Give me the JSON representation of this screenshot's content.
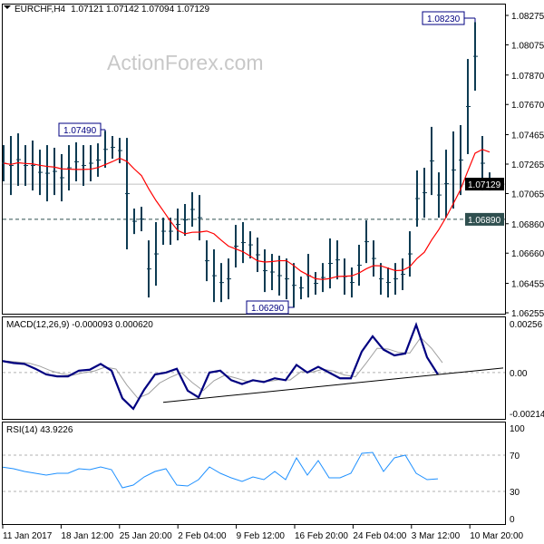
{
  "header": {
    "symbol": "EURCHF,H4",
    "ohlc": "1.07121 1.07142 1.07094 1.07129",
    "menu_icon": "triangle-down-icon"
  },
  "watermark": "ActionForex.com",
  "colors": {
    "bars": "#0d3b52",
    "ma": "#ff0000",
    "macd": "#000080",
    "signal": "#a0a0a0",
    "rsi": "#1e90ff",
    "current_price_bg": "#000000",
    "level_bg": "#2f4f4f"
  },
  "chart_data": [
    {
      "type": "bar",
      "title": "EURCHF,H4",
      "price_axis_ticks": [
        "1.08275",
        "1.08075",
        "1.07870",
        "1.07670",
        "1.07465",
        "1.07265",
        "1.07065",
        "1.06860",
        "1.06660",
        "1.06455",
        "1.06255"
      ],
      "ylim": [
        1.06255,
        1.08275
      ],
      "current_price": "1.07129",
      "level_line": "1.06890",
      "annotations": {
        "high_1": "1.07490",
        "low": "1.06290",
        "high_2": "1.08230"
      },
      "bars_high_low": [
        [
          1.07394,
          1.07148
        ],
        [
          1.07456,
          1.07055
        ],
        [
          1.07474,
          1.07117
        ],
        [
          1.07394,
          1.07117
        ],
        [
          1.07425,
          1.07086
        ],
        [
          1.07363,
          1.07055
        ],
        [
          1.07394,
          1.07012
        ],
        [
          1.07376,
          1.07055
        ],
        [
          1.07333,
          1.07012
        ],
        [
          1.07394,
          1.07086
        ],
        [
          1.07413,
          1.07148
        ],
        [
          1.07394,
          1.07117
        ],
        [
          1.07394,
          1.07148
        ],
        [
          1.07406,
          1.07179
        ],
        [
          1.0749,
          1.0724
        ],
        [
          1.07456,
          1.07302
        ],
        [
          1.07443,
          1.07271
        ],
        [
          1.07443,
          1.06686
        ],
        [
          1.06963,
          1.0679
        ],
        [
          1.06975,
          1.06809
        ],
        [
          1.06747,
          1.06359
        ],
        [
          1.06871,
          1.06439
        ],
        [
          1.06901,
          1.06717
        ],
        [
          1.06901,
          1.06717
        ],
        [
          1.06963,
          1.06747
        ],
        [
          1.06994,
          1.06778
        ],
        [
          1.07074,
          1.0684
        ],
        [
          1.07055,
          1.06747
        ],
        [
          1.06747,
          1.0647
        ],
        [
          1.06686,
          1.06328
        ],
        [
          1.06593,
          1.06328
        ],
        [
          1.06624,
          1.06347
        ],
        [
          1.06852,
          1.06563
        ],
        [
          1.06871,
          1.06593
        ],
        [
          1.06809,
          1.06624
        ],
        [
          1.06766,
          1.06532
        ],
        [
          1.06686,
          1.06396
        ],
        [
          1.06655,
          1.06409
        ],
        [
          1.06643,
          1.06372
        ],
        [
          1.06624,
          1.06347
        ],
        [
          1.06593,
          1.0629
        ],
        [
          1.06501,
          1.06347
        ],
        [
          1.06655,
          1.06359
        ],
        [
          1.06532,
          1.06378
        ],
        [
          1.06593,
          1.06396
        ],
        [
          1.0676,
          1.06421
        ],
        [
          1.06747,
          1.06482
        ],
        [
          1.06624,
          1.06378
        ],
        [
          1.06563,
          1.06359
        ],
        [
          1.06717,
          1.06439
        ],
        [
          1.06883,
          1.06593
        ],
        [
          1.06747,
          1.06501
        ],
        [
          1.06593,
          1.06378
        ],
        [
          1.06563,
          1.06359
        ],
        [
          1.06593,
          1.06378
        ],
        [
          1.06624,
          1.06409
        ],
        [
          1.06809,
          1.06501
        ],
        [
          1.07222,
          1.0684
        ],
        [
          1.0724,
          1.06901
        ],
        [
          1.07518,
          1.07055
        ],
        [
          1.07209,
          1.06901
        ],
        [
          1.07363,
          1.06901
        ],
        [
          1.07487,
          1.06963
        ],
        [
          1.0753,
          1.07055
        ],
        [
          1.07979,
          1.07333
        ],
        [
          1.0823,
          1.07764
        ],
        [
          1.07456,
          1.07086
        ],
        [
          1.07209,
          1.07086
        ]
      ]
    },
    {
      "type": "line",
      "title": "MACD(12,26,9) -0.000093 0.000620",
      "axis_ticks": [
        "0.00256",
        "0.00",
        "-0.002142"
      ],
      "ylim": [
        -0.002142,
        0.00256
      ],
      "macd": [
        0.0006,
        0.0005,
        0.00045,
        0.0002,
        -0.0001,
        -0.0002,
        -0.0002,
        0.0001,
        0.00015,
        0.00045,
        0.0001,
        -0.00135,
        -0.0019,
        -0.0009,
        -0.0001,
        0.0,
        0.0002,
        -0.00095,
        -0.0013,
        0.0,
        0.0001,
        -0.0004,
        -0.0006,
        -0.0004,
        -0.0005,
        -0.0003,
        -0.0004,
        0.0004,
        0.0,
        0.0003,
        0.0,
        -0.0003,
        -0.0003,
        0.0011,
        0.0019,
        0.0012,
        0.0009,
        0.001,
        0.0025,
        0.0008,
        -0.0001
      ],
      "trendline": [
        -0.00156,
        0.00024
      ]
    },
    {
      "type": "line",
      "title": "RSI(14) 43.9226",
      "axis_ticks": [
        "100",
        "70",
        "30",
        "0"
      ],
      "ylim": [
        0,
        100
      ],
      "levels": [
        70,
        30
      ],
      "values": [
        56.7,
        55,
        52,
        50,
        48,
        50,
        50,
        55,
        54,
        57,
        54,
        34,
        37,
        46,
        52,
        55,
        37,
        36,
        43,
        57,
        50,
        45,
        41,
        46,
        43,
        52,
        43,
        67,
        48,
        64,
        45,
        45,
        50,
        72,
        73,
        52,
        67,
        70,
        50,
        43,
        43.9
      ]
    }
  ],
  "time_axis": [
    "11 Jan 2017",
    "18 Jan 12:00",
    "25 Jan 20:00",
    "2 Feb 04:00",
    "9 Feb 12:00",
    "16 Feb 20:00",
    "24 Feb 04:00",
    "3 Mar 12:00",
    "10 Mar 20:00"
  ]
}
